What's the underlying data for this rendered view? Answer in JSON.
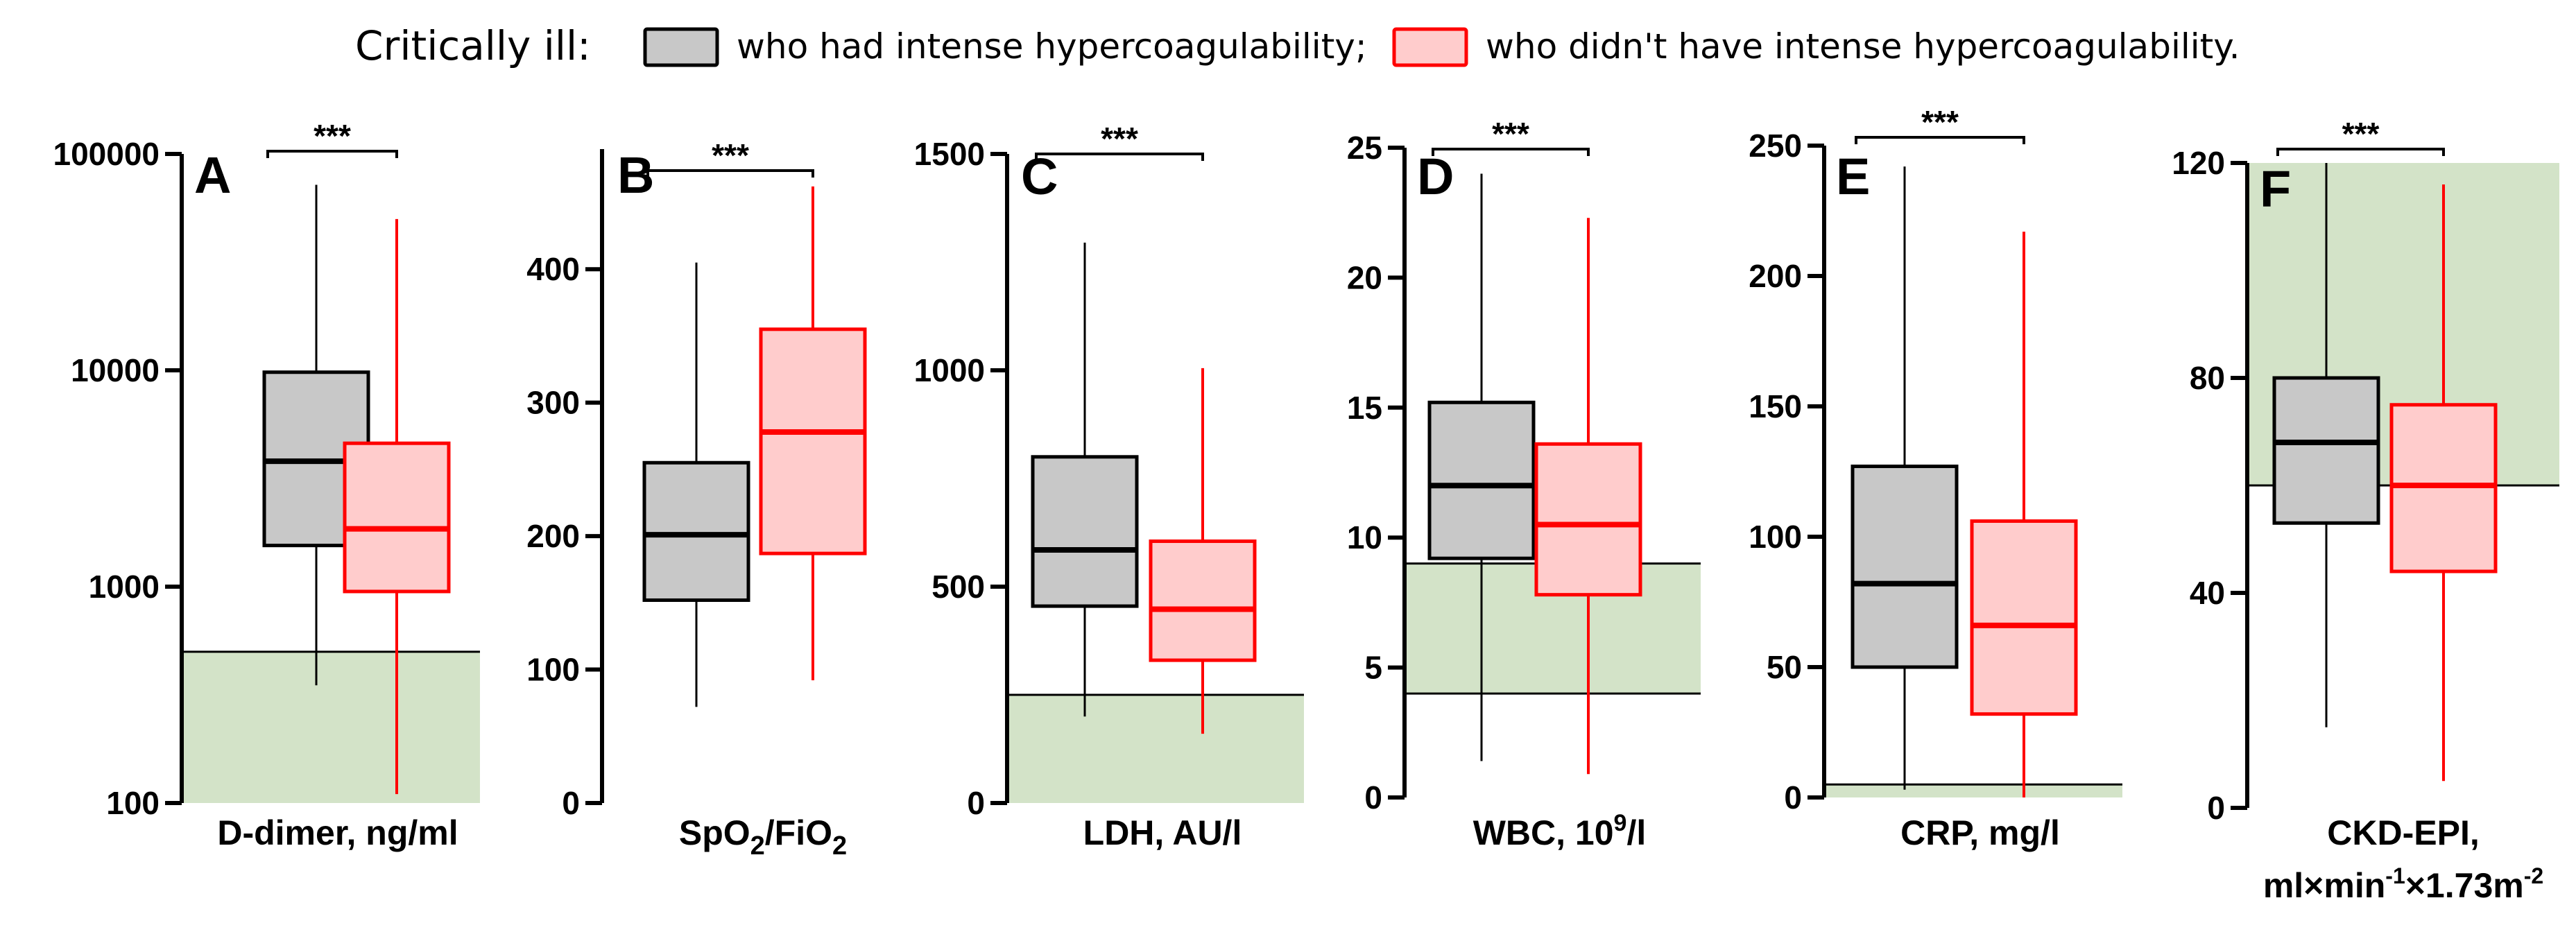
{
  "legend": {
    "prefix": "Critically ill:",
    "groups": [
      {
        "label": "who had intense hypercoagulability;",
        "fill": "#c8c8c8",
        "stroke": "#000000"
      },
      {
        "label": "who didn't have intense hypercoagulability.",
        "fill": "#ffcccc",
        "stroke": "#ff0000"
      }
    ]
  },
  "colors": {
    "ref_fill": "#d3e3c8",
    "ref_line": "#000000"
  },
  "chart_data": [
    {
      "type": "box",
      "panel": "A",
      "scale": "log",
      "xlabel": "D-dimer, ng/ml",
      "ylim": [
        100,
        100000
      ],
      "ticks": [
        100,
        1000,
        10000,
        100000
      ],
      "tick_labels": [
        "100",
        "1000",
        "10000",
        "100000"
      ],
      "reference_range": [
        100,
        500
      ],
      "significance": "***",
      "boxes": [
        {
          "group": "intense",
          "whisker_low": 350,
          "q1": 1550,
          "median": 3800,
          "q3": 9800,
          "whisker_high": 72000
        },
        {
          "group": "not_intense",
          "whisker_low": 110,
          "q1": 950,
          "median": 1850,
          "q3": 4600,
          "whisker_high": 50000
        }
      ]
    },
    {
      "type": "box",
      "panel": "B",
      "scale": "linear",
      "xlabel": "SpO2/FiO2",
      "xlabel_parts": [
        "SpO",
        "2",
        "/FiO",
        "2"
      ],
      "ylim": [
        0,
        490
      ],
      "ticks": [
        0,
        100,
        200,
        300,
        400
      ],
      "tick_labels": [
        "0",
        "100",
        "200",
        "300",
        "400"
      ],
      "reference_range": null,
      "significance": "***",
      "boxes": [
        {
          "group": "intense",
          "whisker_low": 72,
          "q1": 152,
          "median": 201,
          "q3": 255,
          "whisker_high": 405
        },
        {
          "group": "not_intense",
          "whisker_low": 92,
          "q1": 187,
          "median": 278,
          "q3": 355,
          "whisker_high": 462
        }
      ]
    },
    {
      "type": "box",
      "panel": "C",
      "scale": "linear",
      "xlabel": "LDH, AU/l",
      "ylim": [
        0,
        1500
      ],
      "ticks": [
        0,
        500,
        1000,
        1500
      ],
      "tick_labels": [
        "0",
        "500",
        "1000",
        "1500"
      ],
      "reference_range": [
        0,
        250
      ],
      "significance": "***",
      "boxes": [
        {
          "group": "intense",
          "whisker_low": 200,
          "q1": 455,
          "median": 585,
          "q3": 800,
          "whisker_high": 1295
        },
        {
          "group": "not_intense",
          "whisker_low": 160,
          "q1": 330,
          "median": 448,
          "q3": 605,
          "whisker_high": 1005
        }
      ]
    },
    {
      "type": "box",
      "panel": "D",
      "scale": "linear",
      "xlabel": "WBC, 10",
      "xlabel_sup": "9",
      "xlabel_tail": "/l",
      "ylim": [
        0,
        25
      ],
      "ticks": [
        0,
        5,
        10,
        15,
        20,
        25
      ],
      "tick_labels": [
        "0",
        "5",
        "10",
        "15",
        "20",
        "25"
      ],
      "reference_range": [
        4,
        9
      ],
      "significance": "***",
      "boxes": [
        {
          "group": "intense",
          "whisker_low": 1.4,
          "q1": 9.2,
          "median": 12.0,
          "q3": 15.2,
          "whisker_high": 24.0
        },
        {
          "group": "not_intense",
          "whisker_low": 0.9,
          "q1": 7.8,
          "median": 10.5,
          "q3": 13.6,
          "whisker_high": 22.3
        }
      ]
    },
    {
      "type": "box",
      "panel": "E",
      "scale": "linear",
      "xlabel": "CRP, mg/l",
      "ylim": [
        0,
        250
      ],
      "ticks": [
        0,
        50,
        100,
        150,
        200,
        250
      ],
      "tick_labels": [
        "0",
        "50",
        "100",
        "150",
        "200",
        "250"
      ],
      "reference_range": [
        0,
        5
      ],
      "significance": "***",
      "boxes": [
        {
          "group": "intense",
          "whisker_low": 3,
          "q1": 50,
          "median": 82,
          "q3": 127,
          "whisker_high": 242
        },
        {
          "group": "not_intense",
          "whisker_low": 0,
          "q1": 32,
          "median": 66,
          "q3": 106,
          "whisker_high": 217
        }
      ]
    },
    {
      "type": "box",
      "panel": "F",
      "scale": "linear",
      "xlabel": "CKD-EPI,",
      "xlabel_line2": [
        "ml×min",
        "-1",
        "×1.73m",
        "-2"
      ],
      "ylim": [
        0,
        120
      ],
      "ticks": [
        0,
        40,
        80,
        120
      ],
      "tick_labels": [
        "0",
        "40",
        "80",
        "120"
      ],
      "reference_range": [
        60,
        120
      ],
      "significance": "***",
      "boxes": [
        {
          "group": "intense",
          "whisker_low": 15,
          "q1": 53,
          "median": 68,
          "q3": 80,
          "whisker_high": 120
        },
        {
          "group": "not_intense",
          "whisker_low": 5,
          "q1": 44,
          "median": 60,
          "q3": 75,
          "whisker_high": 116
        }
      ]
    }
  ]
}
